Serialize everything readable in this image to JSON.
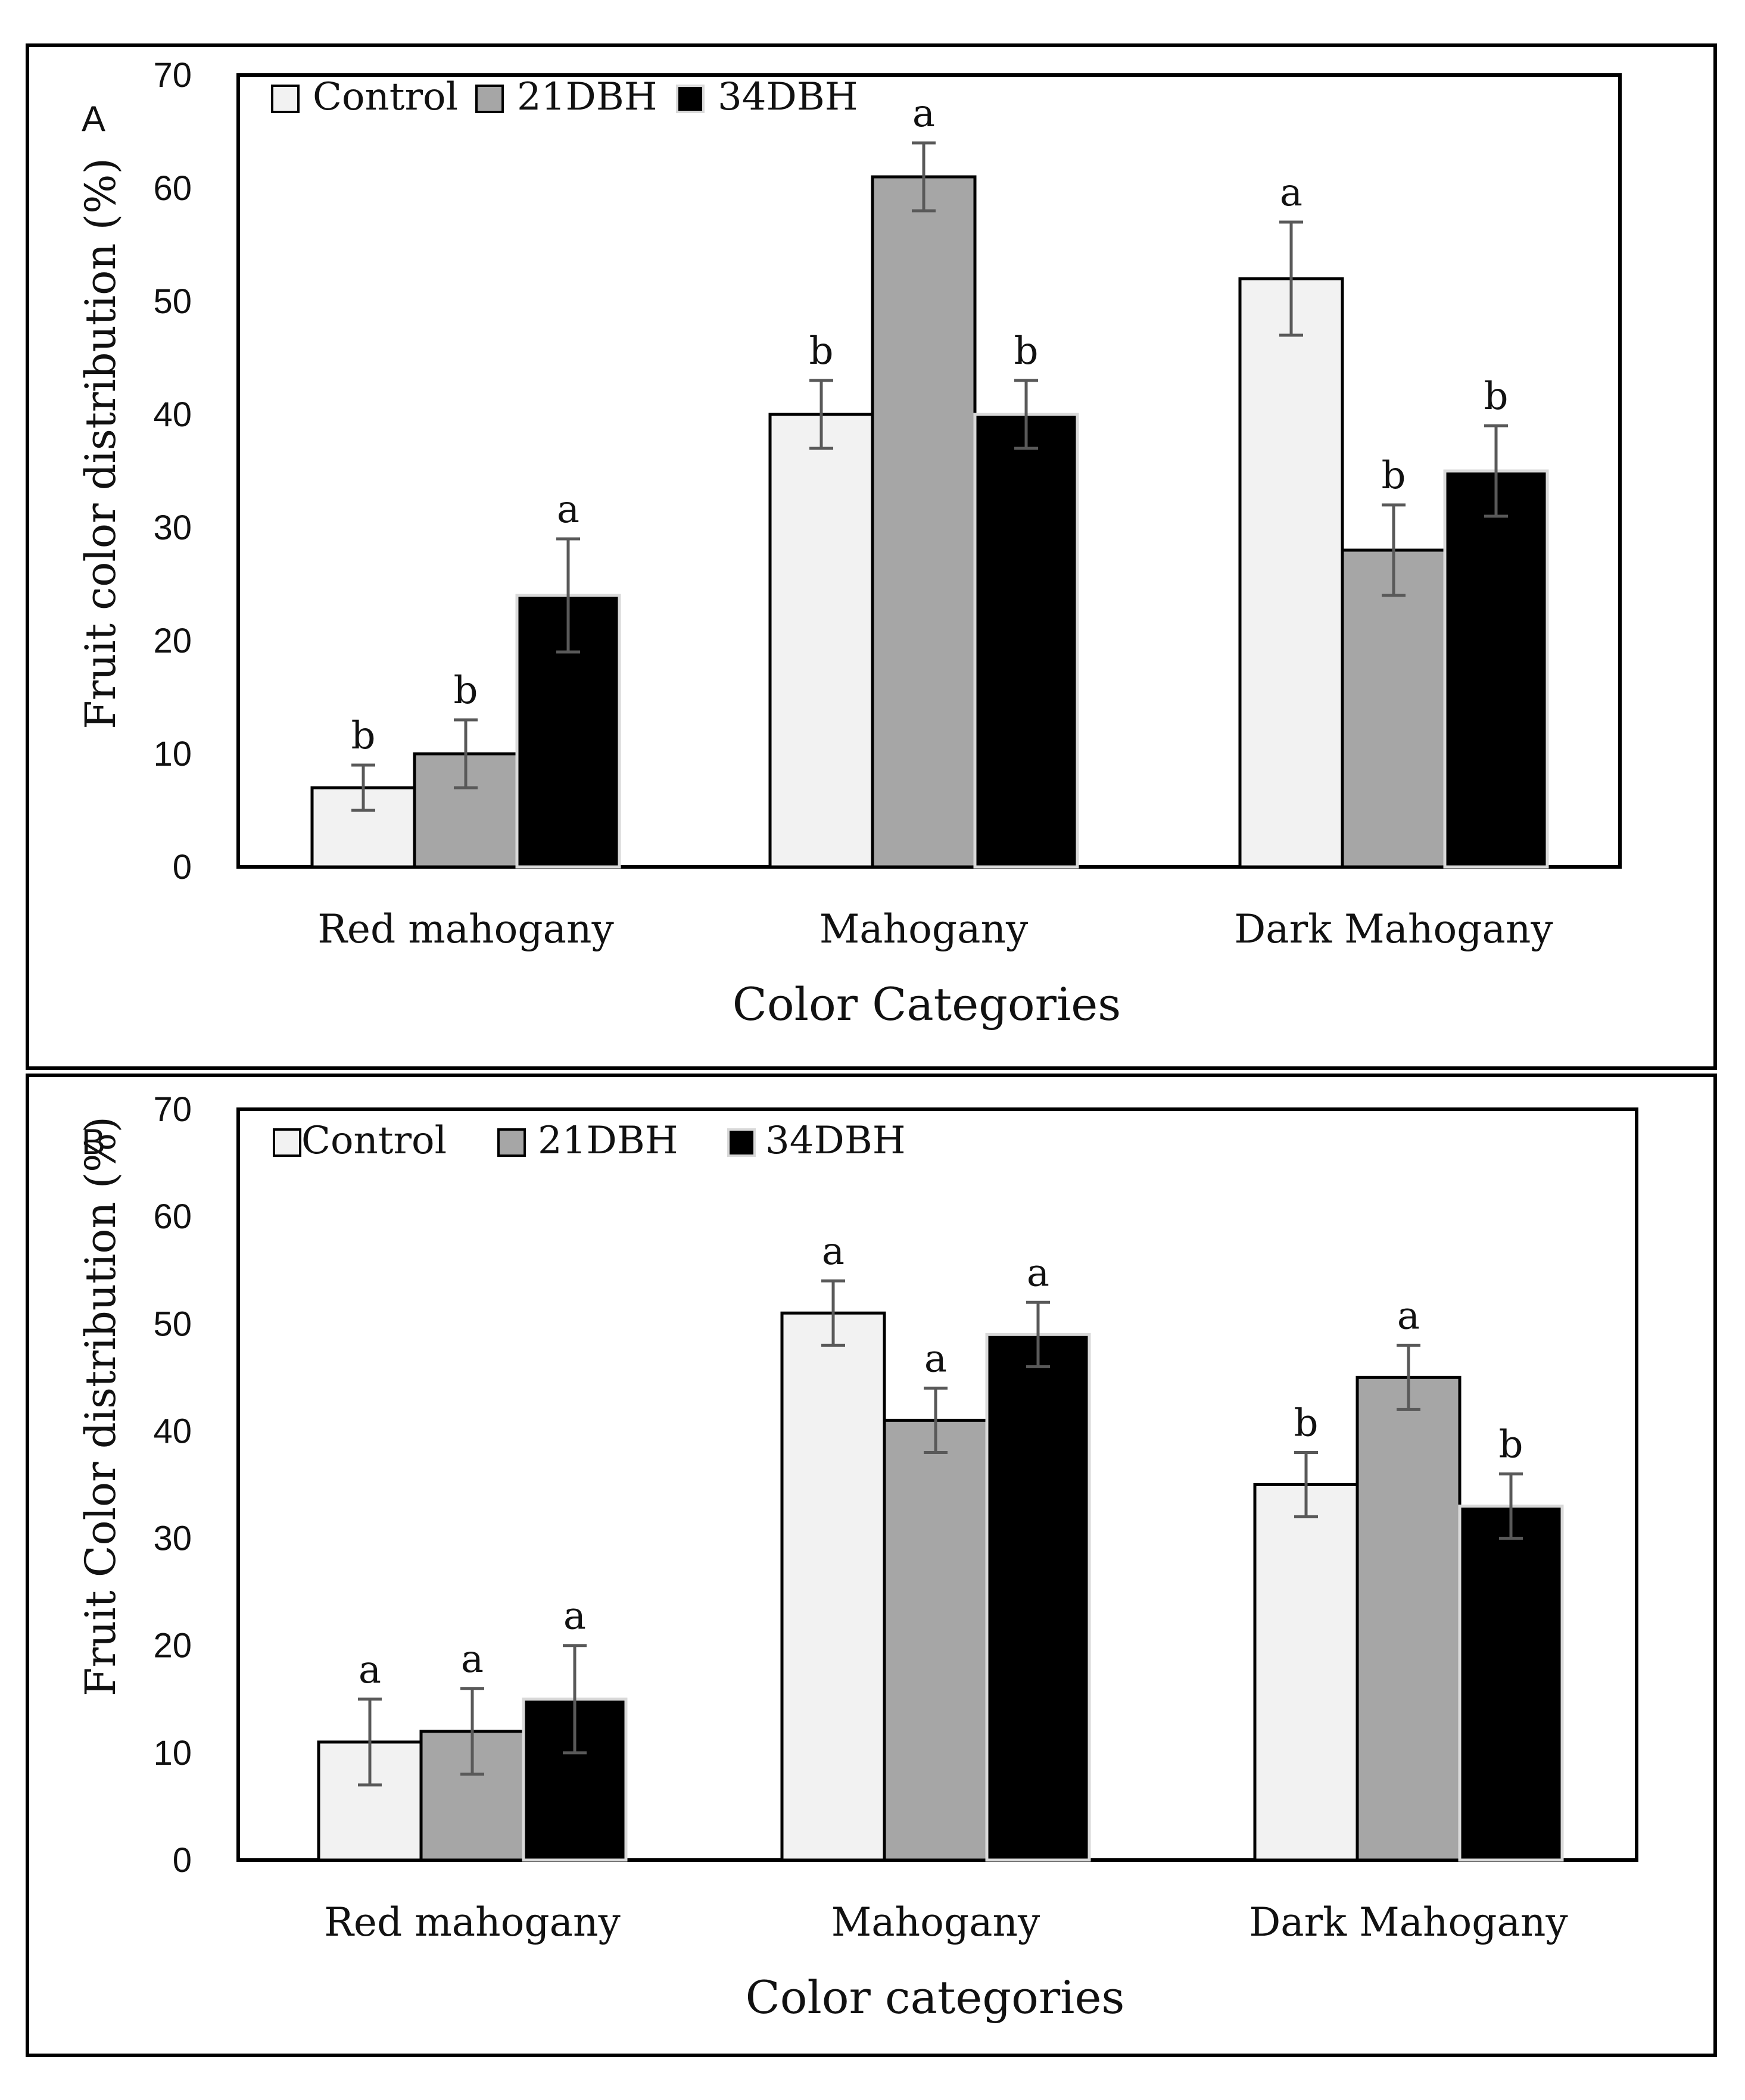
{
  "chart_data": [
    {
      "type": "bar",
      "panel_label": "A",
      "categories": [
        "Red mahogany",
        "Mahogany",
        "Dark Mahogany"
      ],
      "series": [
        {
          "name": "Control",
          "values": [
            7,
            40,
            52
          ],
          "errors": [
            2,
            3,
            5
          ],
          "letters": [
            "b",
            "b",
            "a"
          ],
          "color": "#f2f2f2"
        },
        {
          "name": "21DBH",
          "values": [
            10,
            61,
            28
          ],
          "errors": [
            3,
            3,
            4
          ],
          "letters": [
            "b",
            "a",
            "b"
          ],
          "color": "#a6a6a6"
        },
        {
          "name": "34DBH",
          "values": [
            24,
            40,
            35
          ],
          "errors": [
            5,
            3,
            4
          ],
          "letters": [
            "a",
            "b",
            "b"
          ],
          "color": "#000000"
        }
      ],
      "xlabel": "Color Categories",
      "ylabel": "Fruit color distribution (%)",
      "ylim": [
        0,
        70
      ],
      "yticks": [
        "0",
        "10",
        "20",
        "30",
        "40",
        "50",
        "60",
        "70"
      ],
      "legend_position": "top-left",
      "grid": false
    },
    {
      "type": "bar",
      "panel_label": "B",
      "categories": [
        "Red mahogany",
        "Mahogany",
        "Dark Mahogany"
      ],
      "series": [
        {
          "name": "Control",
          "values": [
            11,
            51,
            35
          ],
          "errors": [
            4,
            3,
            3
          ],
          "letters": [
            "a",
            "a",
            "b"
          ],
          "color": "#f2f2f2"
        },
        {
          "name": "21DBH",
          "values": [
            12,
            41,
            45
          ],
          "errors": [
            4,
            3,
            3
          ],
          "letters": [
            "a",
            "a",
            "a"
          ],
          "color": "#a6a6a6"
        },
        {
          "name": "34DBH",
          "values": [
            15,
            49,
            33
          ],
          "errors": [
            5,
            3,
            3
          ],
          "letters": [
            "a",
            "a",
            "b"
          ],
          "color": "#000000"
        }
      ],
      "xlabel": "Color categories",
      "ylabel": "Fruit Color distribution (%)",
      "ylim": [
        0,
        70
      ],
      "yticks": [
        "0",
        "10",
        "20",
        "30",
        "40",
        "50",
        "60",
        "70"
      ],
      "legend_position": "top-left",
      "grid": false
    }
  ]
}
